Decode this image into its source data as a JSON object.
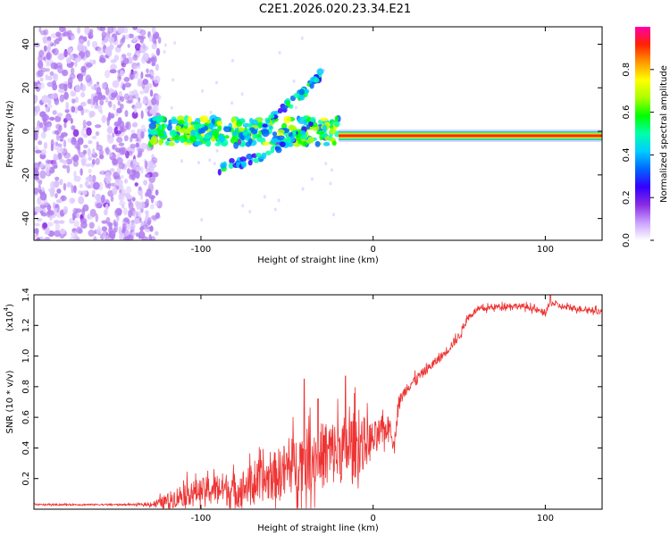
{
  "title": "C2E1.2026.020.23.34.E21",
  "chart_data": [
    {
      "type": "heatmap",
      "title": "C2E1.2026.020.23.34.E21",
      "xlabel": "Height of straight line (km)",
      "ylabel": "Frequency (Hz)",
      "xlim": [
        -197,
        133
      ],
      "ylim": [
        -50,
        48
      ],
      "xticks": [
        -100,
        0,
        100
      ],
      "xtick_labels": [
        "-100",
        "0",
        "100"
      ],
      "yticks": [
        40,
        20,
        0,
        -20,
        -40
      ],
      "ytick_labels": [
        "40",
        "20",
        "0",
        "-20",
        "-40"
      ],
      "colorbar": {
        "label": "Normalized spectral amplitude",
        "range": [
          0.0,
          1.0
        ],
        "ticks": [
          0.0,
          0.2,
          0.4,
          0.6,
          0.8
        ],
        "tick_labels": [
          "0.0",
          "0.2",
          "0.4",
          "0.6",
          "0.8"
        ],
        "colormap": [
          "#ffffff",
          "#c9a0ff",
          "#8a2be2",
          "#3300ff",
          "#0066ff",
          "#00ccff",
          "#00ffaa",
          "#00ff00",
          "#aaff00",
          "#ffff00",
          "#ff9900",
          "#ff2200",
          "#ff00aa"
        ]
      },
      "features": [
        {
          "name": "noise-region",
          "x_range": [
            -197,
            -130
          ],
          "y_range": [
            -50,
            48
          ],
          "amplitude": 0.15
        },
        {
          "name": "broadband-onset",
          "x_range": [
            -130,
            -20
          ],
          "frequency": 0,
          "amplitude": 0.45
        },
        {
          "name": "rising-branch-upper",
          "x": [
            -80,
            -60,
            -45,
            -35,
            -30
          ],
          "y": [
            -5,
            5,
            15,
            22,
            26
          ],
          "amplitude": 0.4
        },
        {
          "name": "rising-branch-lower",
          "x": [
            -90,
            -70,
            -50,
            -35
          ],
          "y": [
            -17,
            -13,
            -5,
            5
          ],
          "amplitude": 0.4
        },
        {
          "name": "main-carrier",
          "x_range": [
            -20,
            133
          ],
          "frequency": -2,
          "amplitude": 0.95
        }
      ]
    },
    {
      "type": "line",
      "xlabel": "Height of straight line (km)",
      "ylabel": "SNR (10 * v/v)",
      "y_multiplier": "(x10",
      "y_multiplier_exp": "4",
      "y_multiplier_close": ")",
      "xlim": [
        -197,
        133
      ],
      "ylim": [
        0,
        1.4
      ],
      "xticks": [
        -100,
        0,
        100
      ],
      "xtick_labels": [
        "-100",
        "0",
        "100"
      ],
      "yticks": [
        0.2,
        0.4,
        0.6,
        0.8,
        1.0,
        1.2,
        1.4
      ],
      "ytick_labels": [
        "0.2",
        "0.4",
        "0.6",
        "0.8",
        "1.0",
        "1.2",
        "1.4"
      ],
      "color": "#ee3333",
      "series": [
        {
          "name": "SNR",
          "x": [
            -197,
            -180,
            -160,
            -140,
            -130,
            -120,
            -110,
            -100,
            -90,
            -80,
            -70,
            -60,
            -50,
            -40,
            -30,
            -20,
            -10,
            0,
            5,
            10,
            12,
            15,
            20,
            30,
            40,
            50,
            55,
            60,
            70,
            80,
            90,
            100,
            103,
            110,
            120,
            133
          ],
          "y": [
            0.03,
            0.03,
            0.03,
            0.03,
            0.03,
            0.05,
            0.1,
            0.12,
            0.14,
            0.12,
            0.17,
            0.2,
            0.27,
            0.32,
            0.35,
            0.38,
            0.42,
            0.45,
            0.5,
            0.55,
            0.4,
            0.7,
            0.8,
            0.9,
            1.0,
            1.13,
            1.25,
            1.3,
            1.32,
            1.33,
            1.32,
            1.28,
            1.35,
            1.32,
            1.31,
            1.29
          ],
          "noise": [
            0.005,
            0.005,
            0.005,
            0.005,
            0.01,
            0.05,
            0.08,
            0.08,
            0.1,
            0.12,
            0.12,
            0.15,
            0.18,
            0.2,
            0.22,
            0.22,
            0.22,
            0.12,
            0.1,
            0.06,
            0.05,
            0.04,
            0.04,
            0.03,
            0.03,
            0.03,
            0.02,
            0.02,
            0.02,
            0.02,
            0.02,
            0.02,
            0.02,
            0.02,
            0.02,
            0.02
          ],
          "peaks": [
            {
              "x": -40,
              "y": 0.85
            },
            {
              "x": -32,
              "y": 0.72
            },
            {
              "x": -16,
              "y": 0.87
            },
            {
              "x": 103,
              "y": 1.41
            }
          ]
        }
      ]
    }
  ]
}
